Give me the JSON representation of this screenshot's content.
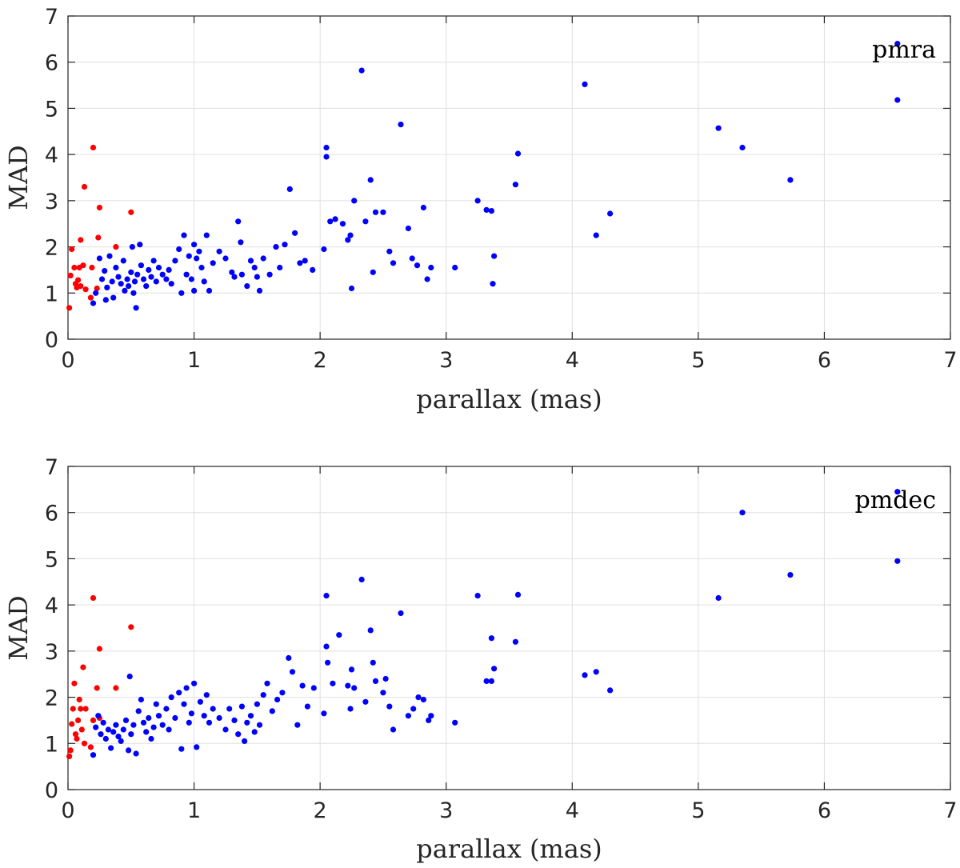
{
  "chart_data": [
    {
      "type": "scatter",
      "panel_label": "pmra",
      "xlabel": "parallax (mas)",
      "ylabel": "MAD",
      "xlim": [
        0,
        7
      ],
      "ylim": [
        0,
        7
      ],
      "xticks": [
        "0",
        "1",
        "2",
        "3",
        "4",
        "5",
        "6",
        "7"
      ],
      "yticks": [
        "0",
        "1",
        "2",
        "3",
        "4",
        "5",
        "6",
        "7"
      ],
      "grid": true,
      "series": [
        {
          "name": "red",
          "color": "#ff0000",
          "points": [
            [
              0.01,
              0.68
            ],
            [
              0.02,
              1.38
            ],
            [
              0.03,
              1.95
            ],
            [
              0.05,
              1.55
            ],
            [
              0.06,
              1.2
            ],
            [
              0.07,
              1.12
            ],
            [
              0.08,
              1.28
            ],
            [
              0.09,
              1.55
            ],
            [
              0.1,
              2.15
            ],
            [
              0.1,
              1.15
            ],
            [
              0.12,
              1.6
            ],
            [
              0.13,
              3.3
            ],
            [
              0.14,
              1.08
            ],
            [
              0.18,
              0.9
            ],
            [
              0.19,
              1.55
            ],
            [
              0.2,
              4.15
            ],
            [
              0.23,
              1.1
            ],
            [
              0.24,
              2.2
            ],
            [
              0.25,
              2.85
            ],
            [
              0.38,
              2.0
            ],
            [
              0.5,
              2.75
            ]
          ]
        },
        {
          "name": "blue",
          "color": "#0000ff",
          "points": [
            [
              0.2,
              0.78
            ],
            [
              0.22,
              1.0
            ],
            [
              0.25,
              1.75
            ],
            [
              0.27,
              1.3
            ],
            [
              0.29,
              1.48
            ],
            [
              0.31,
              1.12
            ],
            [
              0.33,
              1.8
            ],
            [
              0.3,
              0.85
            ],
            [
              0.35,
              1.25
            ],
            [
              0.36,
              0.9
            ],
            [
              0.38,
              1.55
            ],
            [
              0.4,
              1.35
            ],
            [
              0.42,
              1.2
            ],
            [
              0.44,
              1.7
            ],
            [
              0.45,
              1.05
            ],
            [
              0.47,
              1.3
            ],
            [
              0.48,
              1.15
            ],
            [
              0.5,
              1.45
            ],
            [
              0.51,
              2.0
            ],
            [
              0.52,
              1.0
            ],
            [
              0.53,
              1.25
            ],
            [
              0.54,
              0.68
            ],
            [
              0.55,
              1.4
            ],
            [
              0.57,
              2.05
            ],
            [
              0.58,
              1.6
            ],
            [
              0.6,
              1.3
            ],
            [
              0.62,
              1.15
            ],
            [
              0.64,
              1.5
            ],
            [
              0.66,
              1.35
            ],
            [
              0.68,
              1.7
            ],
            [
              0.7,
              1.25
            ],
            [
              0.72,
              1.55
            ],
            [
              0.75,
              1.4
            ],
            [
              0.78,
              1.3
            ],
            [
              0.8,
              1.5
            ],
            [
              0.82,
              1.2
            ],
            [
              0.85,
              1.7
            ],
            [
              0.88,
              1.95
            ],
            [
              0.9,
              1.0
            ],
            [
              0.92,
              2.25
            ],
            [
              0.94,
              1.4
            ],
            [
              0.96,
              1.8
            ],
            [
              0.98,
              1.3
            ],
            [
              1.0,
              2.05
            ],
            [
              1.0,
              1.05
            ],
            [
              1.02,
              1.75
            ],
            [
              1.04,
              1.9
            ],
            [
              1.06,
              1.55
            ],
            [
              1.08,
              1.25
            ],
            [
              1.1,
              2.25
            ],
            [
              1.12,
              1.05
            ],
            [
              1.15,
              1.65
            ],
            [
              1.2,
              1.9
            ],
            [
              1.25,
              1.75
            ],
            [
              1.3,
              1.45
            ],
            [
              1.32,
              1.35
            ],
            [
              1.35,
              2.55
            ],
            [
              1.37,
              2.1
            ],
            [
              1.38,
              1.4
            ],
            [
              1.42,
              1.15
            ],
            [
              1.45,
              1.7
            ],
            [
              1.48,
              1.55
            ],
            [
              1.5,
              1.35
            ],
            [
              1.52,
              1.05
            ],
            [
              1.55,
              1.75
            ],
            [
              1.6,
              1.4
            ],
            [
              1.65,
              2.0
            ],
            [
              1.68,
              1.55
            ],
            [
              1.72,
              2.05
            ],
            [
              1.76,
              3.25
            ],
            [
              1.8,
              2.3
            ],
            [
              1.84,
              1.65
            ],
            [
              1.88,
              1.7
            ],
            [
              1.94,
              1.5
            ],
            [
              2.03,
              1.95
            ],
            [
              2.05,
              4.15
            ],
            [
              2.05,
              3.95
            ],
            [
              2.08,
              2.55
            ],
            [
              2.12,
              2.6
            ],
            [
              2.18,
              2.5
            ],
            [
              2.22,
              2.15
            ],
            [
              2.24,
              2.25
            ],
            [
              2.25,
              1.1
            ],
            [
              2.27,
              3.0
            ],
            [
              2.33,
              5.82
            ],
            [
              2.36,
              2.55
            ],
            [
              2.4,
              3.45
            ],
            [
              2.42,
              1.45
            ],
            [
              2.44,
              2.75
            ],
            [
              2.5,
              2.75
            ],
            [
              2.55,
              1.9
            ],
            [
              2.58,
              1.65
            ],
            [
              2.64,
              4.65
            ],
            [
              2.7,
              2.4
            ],
            [
              2.73,
              1.75
            ],
            [
              2.77,
              1.6
            ],
            [
              2.82,
              2.85
            ],
            [
              2.85,
              1.3
            ],
            [
              2.88,
              1.55
            ],
            [
              3.07,
              1.55
            ],
            [
              3.25,
              3.0
            ],
            [
              3.32,
              2.8
            ],
            [
              3.36,
              2.78
            ],
            [
              3.37,
              1.2
            ],
            [
              3.38,
              1.8
            ],
            [
              3.55,
              3.35
            ],
            [
              3.57,
              4.02
            ],
            [
              4.1,
              5.52
            ],
            [
              4.19,
              2.25
            ],
            [
              4.3,
              2.72
            ],
            [
              5.16,
              4.57
            ],
            [
              5.35,
              4.15
            ],
            [
              5.73,
              3.45
            ],
            [
              6.58,
              5.18
            ],
            [
              6.58,
              6.4
            ]
          ]
        }
      ]
    },
    {
      "type": "scatter",
      "panel_label": "pmdec",
      "xlabel": "parallax (mas)",
      "ylabel": "MAD",
      "xlim": [
        0,
        7
      ],
      "ylim": [
        0,
        7
      ],
      "xticks": [
        "0",
        "1",
        "2",
        "3",
        "4",
        "5",
        "6",
        "7"
      ],
      "yticks": [
        "0",
        "1",
        "2",
        "3",
        "4",
        "5",
        "6",
        "7"
      ],
      "grid": true,
      "series": [
        {
          "name": "red",
          "color": "#ff0000",
          "points": [
            [
              0.01,
              0.72
            ],
            [
              0.02,
              0.85
            ],
            [
              0.03,
              1.42
            ],
            [
              0.04,
              1.75
            ],
            [
              0.05,
              2.3
            ],
            [
              0.06,
              1.2
            ],
            [
              0.07,
              1.1
            ],
            [
              0.08,
              1.5
            ],
            [
              0.09,
              1.95
            ],
            [
              0.1,
              1.75
            ],
            [
              0.11,
              1.3
            ],
            [
              0.12,
              2.65
            ],
            [
              0.13,
              1.0
            ],
            [
              0.14,
              1.75
            ],
            [
              0.18,
              0.92
            ],
            [
              0.2,
              1.5
            ],
            [
              0.2,
              4.15
            ],
            [
              0.23,
              2.2
            ],
            [
              0.25,
              3.05
            ],
            [
              0.25,
              1.55
            ],
            [
              0.38,
              2.2
            ],
            [
              0.5,
              3.52
            ]
          ]
        },
        {
          "name": "blue",
          "color": "#0000ff",
          "points": [
            [
              0.2,
              0.75
            ],
            [
              0.22,
              1.35
            ],
            [
              0.24,
              1.6
            ],
            [
              0.26,
              1.2
            ],
            [
              0.28,
              1.45
            ],
            [
              0.3,
              1.1
            ],
            [
              0.32,
              1.3
            ],
            [
              0.34,
              0.9
            ],
            [
              0.36,
              1.25
            ],
            [
              0.38,
              1.4
            ],
            [
              0.4,
              1.15
            ],
            [
              0.42,
              1.05
            ],
            [
              0.44,
              1.3
            ],
            [
              0.46,
              1.5
            ],
            [
              0.48,
              0.85
            ],
            [
              0.49,
              2.45
            ],
            [
              0.5,
              1.2
            ],
            [
              0.52,
              1.4
            ],
            [
              0.54,
              0.78
            ],
            [
              0.56,
              1.7
            ],
            [
              0.58,
              1.95
            ],
            [
              0.6,
              1.45
            ],
            [
              0.62,
              1.25
            ],
            [
              0.64,
              1.55
            ],
            [
              0.66,
              1.1
            ],
            [
              0.68,
              1.35
            ],
            [
              0.7,
              1.85
            ],
            [
              0.72,
              1.6
            ],
            [
              0.75,
              1.4
            ],
            [
              0.78,
              1.75
            ],
            [
              0.8,
              1.3
            ],
            [
              0.82,
              2.0
            ],
            [
              0.85,
              1.55
            ],
            [
              0.88,
              2.1
            ],
            [
              0.9,
              0.88
            ],
            [
              0.92,
              1.85
            ],
            [
              0.94,
              2.2
            ],
            [
              0.96,
              1.45
            ],
            [
              0.98,
              1.65
            ],
            [
              1.0,
              2.3
            ],
            [
              1.02,
              0.92
            ],
            [
              1.05,
              1.9
            ],
            [
              1.08,
              1.6
            ],
            [
              1.1,
              2.05
            ],
            [
              1.12,
              1.45
            ],
            [
              1.15,
              1.75
            ],
            [
              1.2,
              1.55
            ],
            [
              1.25,
              1.3
            ],
            [
              1.28,
              1.75
            ],
            [
              1.32,
              1.5
            ],
            [
              1.35,
              1.2
            ],
            [
              1.38,
              1.8
            ],
            [
              1.4,
              1.05
            ],
            [
              1.42,
              1.45
            ],
            [
              1.45,
              1.6
            ],
            [
              1.48,
              1.25
            ],
            [
              1.5,
              1.85
            ],
            [
              1.52,
              1.4
            ],
            [
              1.55,
              2.05
            ],
            [
              1.58,
              2.3
            ],
            [
              1.62,
              1.7
            ],
            [
              1.66,
              1.95
            ],
            [
              1.7,
              2.1
            ],
            [
              1.75,
              2.85
            ],
            [
              1.78,
              2.55
            ],
            [
              1.82,
              1.4
            ],
            [
              1.86,
              2.25
            ],
            [
              1.9,
              1.8
            ],
            [
              1.95,
              2.2
            ],
            [
              2.03,
              1.65
            ],
            [
              2.05,
              4.2
            ],
            [
              2.05,
              3.1
            ],
            [
              2.06,
              2.75
            ],
            [
              2.1,
              2.3
            ],
            [
              2.15,
              3.35
            ],
            [
              2.22,
              2.25
            ],
            [
              2.24,
              1.75
            ],
            [
              2.25,
              2.6
            ],
            [
              2.27,
              2.2
            ],
            [
              2.33,
              4.55
            ],
            [
              2.36,
              1.9
            ],
            [
              2.4,
              3.45
            ],
            [
              2.42,
              2.75
            ],
            [
              2.44,
              2.35
            ],
            [
              2.5,
              2.1
            ],
            [
              2.52,
              2.4
            ],
            [
              2.55,
              1.8
            ],
            [
              2.58,
              1.3
            ],
            [
              2.64,
              3.82
            ],
            [
              2.7,
              1.6
            ],
            [
              2.74,
              1.75
            ],
            [
              2.78,
              2.0
            ],
            [
              2.82,
              1.95
            ],
            [
              2.86,
              1.5
            ],
            [
              2.88,
              1.6
            ],
            [
              3.07,
              1.45
            ],
            [
              3.25,
              4.2
            ],
            [
              3.32,
              2.35
            ],
            [
              3.36,
              3.28
            ],
            [
              3.36,
              2.35
            ],
            [
              3.38,
              2.62
            ],
            [
              3.55,
              3.2
            ],
            [
              3.57,
              4.22
            ],
            [
              4.1,
              2.48
            ],
            [
              4.19,
              2.55
            ],
            [
              4.3,
              2.15
            ],
            [
              5.16,
              4.15
            ],
            [
              5.35,
              6.0
            ],
            [
              5.73,
              4.65
            ],
            [
              6.58,
              4.95
            ],
            [
              6.58,
              6.45
            ]
          ]
        }
      ]
    }
  ]
}
